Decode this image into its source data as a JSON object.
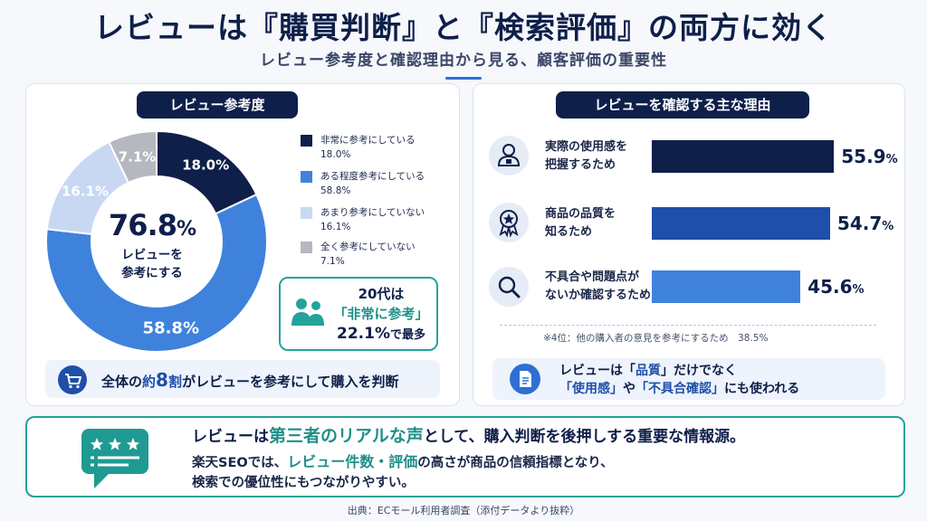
{
  "header": {
    "title": "レビューは『購買判断』と『検索評価』の両方に効く",
    "subtitle": "レビュー参考度と確認理由から見る、顧客評価の重要性"
  },
  "left_panel": {
    "title": "レビュー参考度",
    "center_value": "76.8",
    "center_unit": "%",
    "center_line1": "レビューを",
    "center_line2": "参考にする",
    "callout": {
      "line1": "20代は",
      "line2": "「非常に参考」",
      "value": "22.1%",
      "suffix": "で最多",
      "accent_color": "#23a39a"
    },
    "note": {
      "prefix": "全体の",
      "highlight": "約",
      "number": "8",
      "unit": "割",
      "suffix": "がレビューを参考にして購入を判断"
    }
  },
  "right_panel": {
    "title": "レビューを確認する主な理由",
    "footnote": "※4位：他の購入者の意見を参考にするため　38.5%",
    "note": {
      "l1_pre": "レビューは「",
      "l1_hl": "品質",
      "l1_post": "」だけでなく",
      "l2_hl1": "「使用感」",
      "l2_mid": "や",
      "l2_hl2": "「不具合確認」",
      "l2_post": "にも使われる"
    }
  },
  "banner": {
    "l1_pre": "レビューは",
    "l1_hl": "第三者のリアルな声",
    "l1_post": "として、購入判断を後押しする重要な情報源。",
    "l2_pre": "楽天SEOでは、",
    "l2_hl": "レビュー件数・評価",
    "l2_post": "の高さが商品の信頼指標となり、",
    "l3": "検索での優位性にもつながりやすい。"
  },
  "source": "出典：ECモール利用者調査（添付データより抜粋）",
  "chart_data": [
    {
      "type": "pie",
      "title": "レビュー参考度",
      "series": [
        {
          "name": "非常に参考にしている",
          "value": 18.0,
          "label": "18.0%",
          "color": "#0e1f4a"
        },
        {
          "name": "ある程度参考にしている",
          "value": 58.8,
          "label": "58.8%",
          "color": "#3f82dc"
        },
        {
          "name": "あまり参考にしていない",
          "value": 16.1,
          "label": "16.1%",
          "color": "#c8d8f3"
        },
        {
          "name": "全く参考にしていない",
          "value": 7.1,
          "label": "7.1%",
          "color": "#b5b8bf"
        }
      ],
      "legend": "right"
    },
    {
      "type": "bar",
      "title": "レビューを確認する主な理由",
      "orientation": "horizontal",
      "categories": [
        {
          "line1": "実際の使用感を",
          "line2": "把握するため",
          "icon": "user-lock-icon"
        },
        {
          "line1": "商品の品質を",
          "line2": "知るため",
          "icon": "medal-star-icon"
        },
        {
          "line1": "不具合や問題点が",
          "line2": "ないか確認するため",
          "icon": "magnifier-icon"
        }
      ],
      "values": [
        55.9,
        54.7,
        45.6
      ],
      "labels": [
        "55.9",
        "54.7",
        "45.6"
      ],
      "unit": "%",
      "colors": [
        "#0e1f4a",
        "#1f4fa8",
        "#3f82dc"
      ]
    }
  ]
}
